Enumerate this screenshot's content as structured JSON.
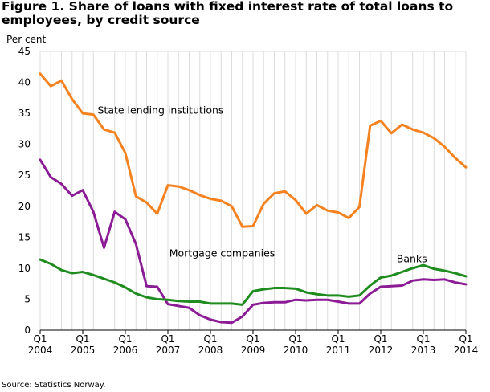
{
  "chart_data": {
    "type": "line",
    "title": "Figure 1. Share of loans with fixed interest rate of total loans to employees, by credit source",
    "ylabel": "Per cent",
    "xlabel": "",
    "ylim": [
      0,
      45
    ],
    "yticks": [
      0,
      5,
      10,
      15,
      20,
      25,
      30,
      35,
      40,
      45
    ],
    "grid": "vertical",
    "legend": "inline labels",
    "x_tick_labels": [
      {
        "q": "Q1",
        "year": "2004"
      },
      {
        "q": "Q1",
        "year": "2005"
      },
      {
        "q": "Q1",
        "year": "2006"
      },
      {
        "q": "Q1",
        "year": "2007"
      },
      {
        "q": "Q1",
        "year": "2008"
      },
      {
        "q": "Q1",
        "year": "2009"
      },
      {
        "q": "Q1",
        "year": "2010"
      },
      {
        "q": "Q1",
        "year": "2011"
      },
      {
        "q": "Q1",
        "year": "2012"
      },
      {
        "q": "Q1",
        "year": "2013"
      },
      {
        "q": "Q1",
        "year": "2014"
      }
    ],
    "x": [
      "2004Q1",
      "2004Q2",
      "2004Q3",
      "2004Q4",
      "2005Q1",
      "2005Q2",
      "2005Q3",
      "2005Q4",
      "2006Q1",
      "2006Q2",
      "2006Q3",
      "2006Q4",
      "2007Q1",
      "2007Q2",
      "2007Q3",
      "2007Q4",
      "2008Q1",
      "2008Q2",
      "2008Q3",
      "2008Q4",
      "2009Q1",
      "2009Q2",
      "2009Q3",
      "2009Q4",
      "2010Q1",
      "2010Q2",
      "2010Q3",
      "2010Q4",
      "2011Q1",
      "2011Q2",
      "2011Q3",
      "2011Q4",
      "2012Q1",
      "2012Q2",
      "2012Q3",
      "2012Q4",
      "2013Q1",
      "2013Q2",
      "2013Q3",
      "2013Q4",
      "2014Q1"
    ],
    "series": [
      {
        "name": "State lending institutions",
        "color": "#f58220",
        "values": [
          41.4,
          39.4,
          40.3,
          37.3,
          35.0,
          34.8,
          32.4,
          31.9,
          28.6,
          21.6,
          20.6,
          18.8,
          23.4,
          23.2,
          22.6,
          21.8,
          21.2,
          20.9,
          20.0,
          16.7,
          16.8,
          20.4,
          22.1,
          22.4,
          21.0,
          18.8,
          20.2,
          19.3,
          19.0,
          18.1,
          19.9,
          33.0,
          33.8,
          31.8,
          33.2,
          32.4,
          31.9,
          31.0,
          29.6,
          27.8,
          26.3
        ]
      },
      {
        "name": "Mortgage companies",
        "color": "#8b1c95",
        "values": [
          27.5,
          24.7,
          23.6,
          21.7,
          22.6,
          19.1,
          13.3,
          19.1,
          17.9,
          13.9,
          7.1,
          7.0,
          4.2,
          3.9,
          3.6,
          2.4,
          1.7,
          1.3,
          1.2,
          2.2,
          4.1,
          4.4,
          4.5,
          4.5,
          4.9,
          4.8,
          4.9,
          4.9,
          4.6,
          4.3,
          4.3,
          5.9,
          7.0,
          7.1,
          7.2,
          8.0,
          8.2,
          8.1,
          8.2,
          7.7,
          7.4
        ]
      },
      {
        "name": "Banks",
        "color": "#1e8c1e",
        "values": [
          11.4,
          10.7,
          9.7,
          9.2,
          9.4,
          8.9,
          8.3,
          7.7,
          6.9,
          5.9,
          5.3,
          5.0,
          4.9,
          4.7,
          4.6,
          4.6,
          4.3,
          4.3,
          4.3,
          4.1,
          6.3,
          6.6,
          6.8,
          6.8,
          6.7,
          6.1,
          5.8,
          5.6,
          5.6,
          5.4,
          5.6,
          7.2,
          8.5,
          8.8,
          9.4,
          10.0,
          10.5,
          9.9,
          9.6,
          9.2,
          8.7
        ]
      }
    ],
    "annotations": [
      {
        "text": "State lending institutions",
        "series": "State lending institutions",
        "near_index": 6,
        "at_value": 35.5
      },
      {
        "text": "Mortgage companies",
        "series": "Mortgage companies",
        "near_index": 11,
        "at_value": 12.5
      },
      {
        "text": "Banks",
        "series": "Banks",
        "near_index": 35,
        "at_value": 11.5
      }
    ]
  },
  "source": "Source: Statistics Norway."
}
